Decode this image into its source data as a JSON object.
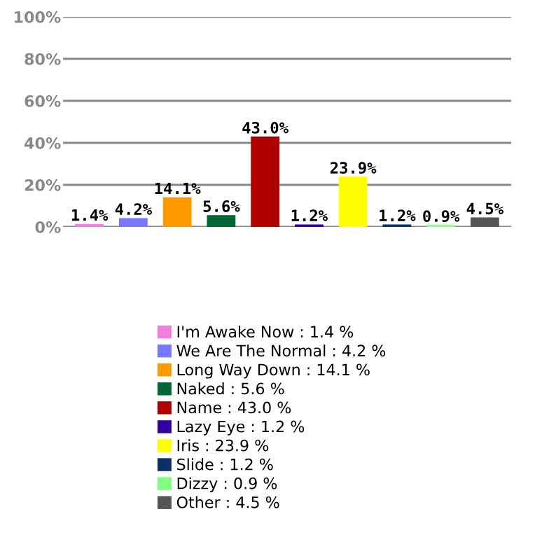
{
  "chart_data": {
    "type": "bar",
    "categories": [
      null,
      null,
      null,
      null,
      null,
      null,
      null,
      null,
      null,
      null
    ],
    "series": [
      {
        "name": "I'm Awake Now : 1.4 %",
        "color": "#f080e0",
        "values": [
          1.4,
          null,
          null,
          null,
          null,
          null,
          null,
          null,
          null,
          null
        ],
        "value_labels": [
          "1.4%",
          null,
          null,
          null,
          null,
          null,
          null,
          null,
          null,
          null
        ]
      },
      {
        "name": "We Are The Normal : 4.2 %",
        "color": "#7878ff",
        "values": [
          null,
          4.2,
          null,
          null,
          null,
          null,
          null,
          null,
          null,
          null
        ],
        "value_labels": [
          null,
          "4.2%",
          null,
          null,
          null,
          null,
          null,
          null,
          null,
          null
        ]
      },
      {
        "name": "Long Way Down : 14.1 %",
        "color": "#ff9900",
        "values": [
          null,
          null,
          14.1,
          null,
          null,
          null,
          null,
          null,
          null,
          null
        ],
        "value_labels": [
          null,
          null,
          "14.1%",
          null,
          null,
          null,
          null,
          null,
          null,
          null
        ]
      },
      {
        "name": "Naked : 5.6 %",
        "color": "#006633",
        "values": [
          null,
          null,
          null,
          5.6,
          null,
          null,
          null,
          null,
          null,
          null
        ],
        "value_labels": [
          null,
          null,
          null,
          "5.6%",
          null,
          null,
          null,
          null,
          null,
          null
        ]
      },
      {
        "name": "Name : 43.0 %",
        "color": "#b00000",
        "values": [
          null,
          null,
          null,
          null,
          43.0,
          null,
          null,
          null,
          null,
          null
        ],
        "value_labels": [
          null,
          null,
          null,
          null,
          "43.0%",
          null,
          null,
          null,
          null,
          null
        ]
      },
      {
        "name": "Lazy Eye : 1.2 %",
        "color": "#3300a0",
        "values": [
          null,
          null,
          null,
          null,
          null,
          1.2,
          null,
          null,
          null,
          null
        ],
        "value_labels": [
          null,
          null,
          null,
          null,
          null,
          "1.2%",
          null,
          null,
          null,
          null
        ]
      },
      {
        "name": "Iris : 23.9 %",
        "color": "#ffff00",
        "values": [
          null,
          null,
          null,
          null,
          null,
          null,
          23.9,
          null,
          null,
          null
        ],
        "value_labels": [
          null,
          null,
          null,
          null,
          null,
          null,
          "23.9%",
          null,
          null,
          null
        ]
      },
      {
        "name": "Slide : 1.2 %",
        "color": "#0a3066",
        "values": [
          null,
          null,
          null,
          null,
          null,
          null,
          null,
          1.2,
          null,
          null
        ],
        "value_labels": [
          null,
          null,
          null,
          null,
          null,
          null,
          null,
          "1.2%",
          null,
          null
        ]
      },
      {
        "name": "Dizzy : 0.9 %",
        "color": "#80ff80",
        "values": [
          null,
          null,
          null,
          null,
          null,
          null,
          null,
          null,
          0.9,
          null
        ],
        "value_labels": [
          null,
          null,
          null,
          null,
          null,
          null,
          null,
          null,
          "0.9%",
          null
        ]
      },
      {
        "name": "Other : 4.5 %",
        "color": "#555555",
        "values": [
          null,
          null,
          null,
          null,
          null,
          null,
          null,
          null,
          null,
          4.5
        ],
        "value_labels": [
          null,
          null,
          null,
          null,
          null,
          null,
          null,
          null,
          null,
          "4.5%"
        ]
      }
    ],
    "ylim": [
      0,
      100
    ],
    "yticks": [
      {
        "value": 0,
        "label": "0%"
      },
      {
        "value": 20,
        "label": "20%"
      },
      {
        "value": 40,
        "label": "40%"
      },
      {
        "value": 60,
        "label": "60%"
      },
      {
        "value": 80,
        "label": "80%"
      },
      {
        "value": 100,
        "label": "100%"
      }
    ],
    "grid": "y",
    "legend": "bottom",
    "tick_labels": "y"
  }
}
